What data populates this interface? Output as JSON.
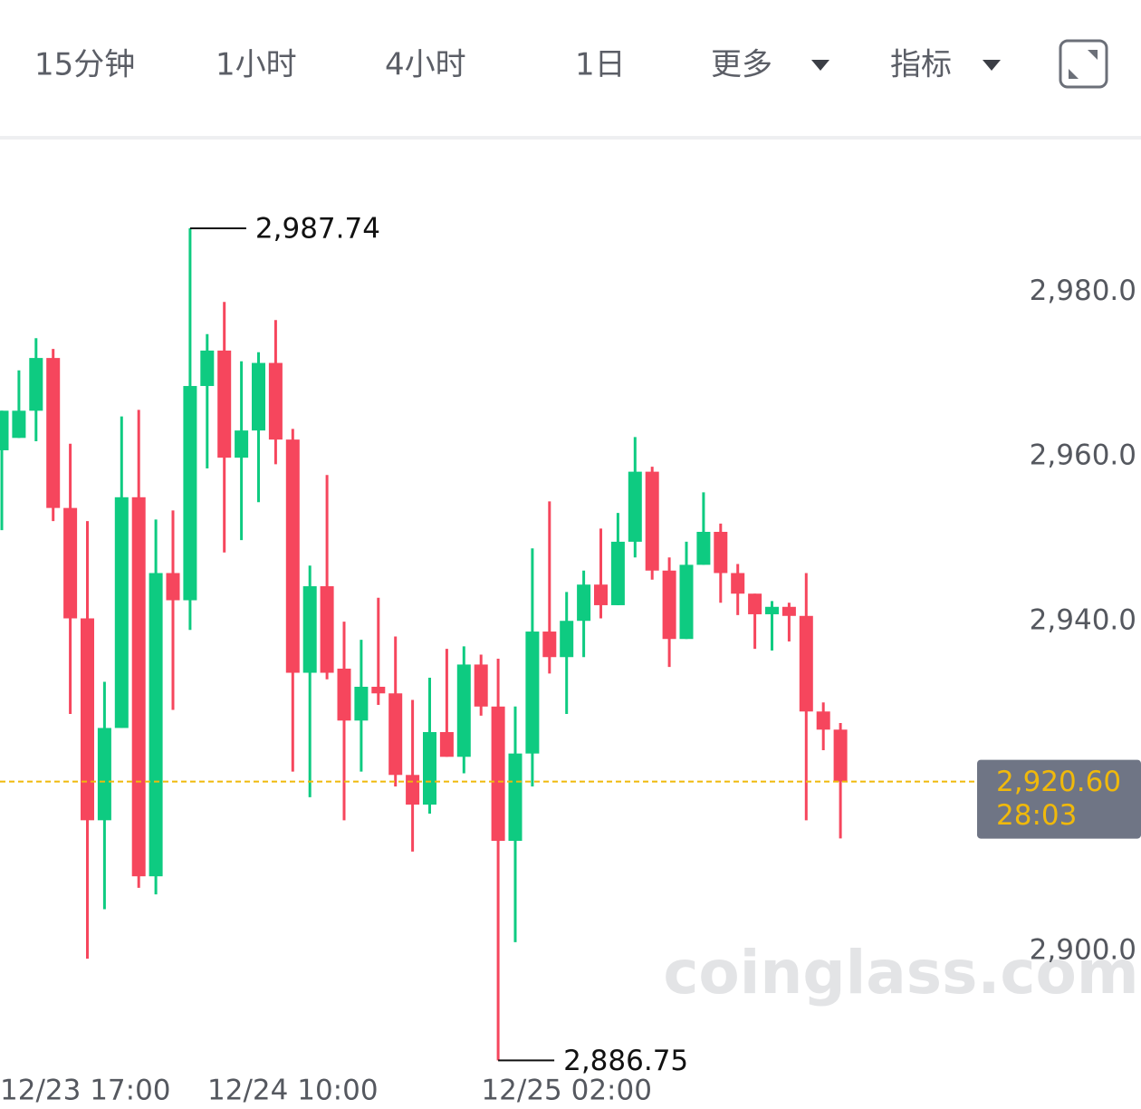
{
  "toolbar": {
    "tabs": [
      "15分钟",
      "1小时",
      "4小时",
      "1日"
    ],
    "active": 1,
    "menus": [
      "更多",
      "指标"
    ],
    "active_color": "#f0b90b"
  },
  "chart_data": {
    "type": "candlestick",
    "categories": [
      "12/23 17:00",
      null,
      null,
      null,
      null,
      null,
      null,
      null,
      null,
      null,
      null,
      null,
      null,
      null,
      null,
      null,
      null,
      "12/24 10:00",
      null,
      null,
      null,
      null,
      null,
      null,
      null,
      null,
      null,
      null,
      null,
      null,
      null,
      null,
      null,
      "12/25 02:00",
      null,
      null,
      null,
      null,
      null,
      null,
      null,
      null,
      null,
      null,
      null,
      null,
      null,
      null,
      null,
      null
    ],
    "open": [
      2960.8,
      2962.3,
      2965.6,
      2972.0,
      2953.8,
      2940.4,
      2915.9,
      2927.1,
      2955.1,
      2909.1,
      2945.9,
      2942.6,
      2968.6,
      2972.9,
      2959.9,
      2963.2,
      2971.4,
      2962.1,
      2933.8,
      2944.3,
      2934.3,
      2928.0,
      2932.1,
      2931.3,
      2921.4,
      2917.8,
      2926.6,
      2923.6,
      2934.8,
      2929.7,
      2913.4,
      2924.0,
      2938.8,
      2935.7,
      2940.1,
      2944.5,
      2942.0,
      2949.7,
      2958.2,
      2946.2,
      2937.9,
      2946.9,
      2950.9,
      2945.9,
      2943.4,
      2940.9,
      2941.8,
      2940.7,
      2929.1,
      2926.9
    ],
    "high": [
      2965.6,
      2970.5,
      2974.4,
      2973.1,
      2961.6,
      2952.2,
      2932.7,
      2964.9,
      2965.7,
      2952.4,
      2953.5,
      2987.74,
      2974.9,
      2978.8,
      2971.6,
      2972.7,
      2976.6,
      2963.4,
      2946.8,
      2957.8,
      2940.0,
      2937.8,
      2942.9,
      2938.2,
      2930.5,
      2933.2,
      2936.7,
      2937.0,
      2936.0,
      2935.5,
      2929.7,
      2948.9,
      2954.6,
      2943.6,
      2946.2,
      2951.3,
      2953.2,
      2962.4,
      2958.8,
      2947.8,
      2949.7,
      2955.7,
      2951.9,
      2947.0,
      2943.4,
      2942.5,
      2942.3,
      2945.9,
      2930.2,
      2927.7
    ],
    "low": [
      2951.1,
      2962.3,
      2961.9,
      2952.2,
      2928.8,
      2899.1,
      2905.1,
      2927.1,
      2907.7,
      2906.9,
      2929.3,
      2939.0,
      2958.6,
      2948.4,
      2949.9,
      2954.5,
      2959.1,
      2921.8,
      2918.7,
      2933.0,
      2915.9,
      2921.8,
      2929.9,
      2920.0,
      2912.1,
      2916.7,
      2923.6,
      2921.6,
      2928.6,
      2886.75,
      2901.1,
      2920.0,
      2933.7,
      2928.8,
      2935.7,
      2940.4,
      2942.0,
      2947.8,
      2945.1,
      2934.5,
      2937.9,
      2946.9,
      2942.3,
      2940.8,
      2936.7,
      2936.5,
      2937.6,
      2915.9,
      2924.4,
      2913.7
    ],
    "close": [
      2965.6,
      2965.6,
      2972.0,
      2953.8,
      2940.4,
      2915.9,
      2927.1,
      2955.1,
      2909.1,
      2945.9,
      2942.6,
      2968.6,
      2972.9,
      2959.9,
      2963.2,
      2971.4,
      2962.1,
      2933.8,
      2944.3,
      2933.8,
      2928.0,
      2932.1,
      2931.3,
      2921.4,
      2917.8,
      2926.6,
      2923.6,
      2934.8,
      2929.7,
      2913.4,
      2924.0,
      2938.8,
      2935.7,
      2940.1,
      2944.5,
      2942.0,
      2949.7,
      2958.2,
      2946.2,
      2937.9,
      2946.9,
      2950.9,
      2945.9,
      2943.4,
      2940.9,
      2941.8,
      2940.7,
      2929.1,
      2926.9,
      2920.6
    ],
    "up_color": "#0ecb81",
    "down_color": "#f6465d",
    "ylim": [
      2881.3,
      2998.4
    ],
    "yticks": [
      {
        "value": 2900,
        "label": "2,900.0"
      },
      {
        "value": 2940,
        "label": "2,940.0"
      },
      {
        "value": 2960,
        "label": "2,960.0"
      },
      {
        "value": 2980,
        "label": "2,980.0"
      }
    ],
    "annotations": [
      {
        "value": 2987.74,
        "label": "2,987.74"
      },
      {
        "value": 2886.75,
        "label": "2,886.75"
      }
    ],
    "last_price": {
      "value": 2920.6,
      "label": "2,920.60",
      "countdown": "28:03",
      "color": "#f0b90b"
    },
    "watermark": "coinglass.com"
  }
}
